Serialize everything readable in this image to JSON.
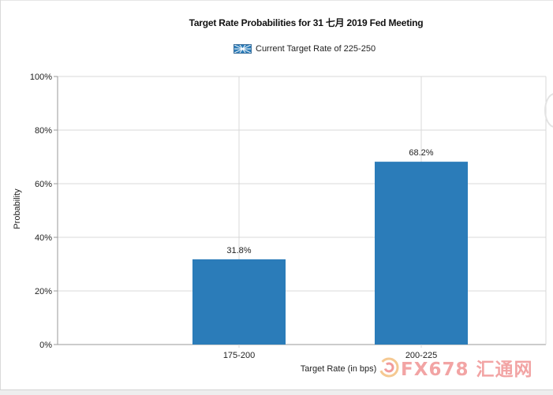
{
  "chart_data": {
    "type": "bar",
    "title": "Target Rate Probabilities for 31 七月 2019 Fed Meeting",
    "legend": {
      "label": "Current Target Rate of 225-250",
      "placement": "top-center"
    },
    "categories": [
      "175-200",
      "200-225"
    ],
    "values": [
      31.8,
      68.2
    ],
    "data_labels": [
      "31.8%",
      "68.2%"
    ],
    "xlabel": "Target Rate (in bps)",
    "ylabel": "Probability",
    "ylim": [
      0,
      100
    ],
    "yticks": [
      "0%",
      "20%",
      "40%",
      "60%",
      "80%",
      "100%"
    ],
    "grid": true,
    "bar_color": "#2b7cb9"
  },
  "watermark": {
    "text": "FX678 汇通网",
    "icon": "fx678-swirl-logo-icon"
  }
}
